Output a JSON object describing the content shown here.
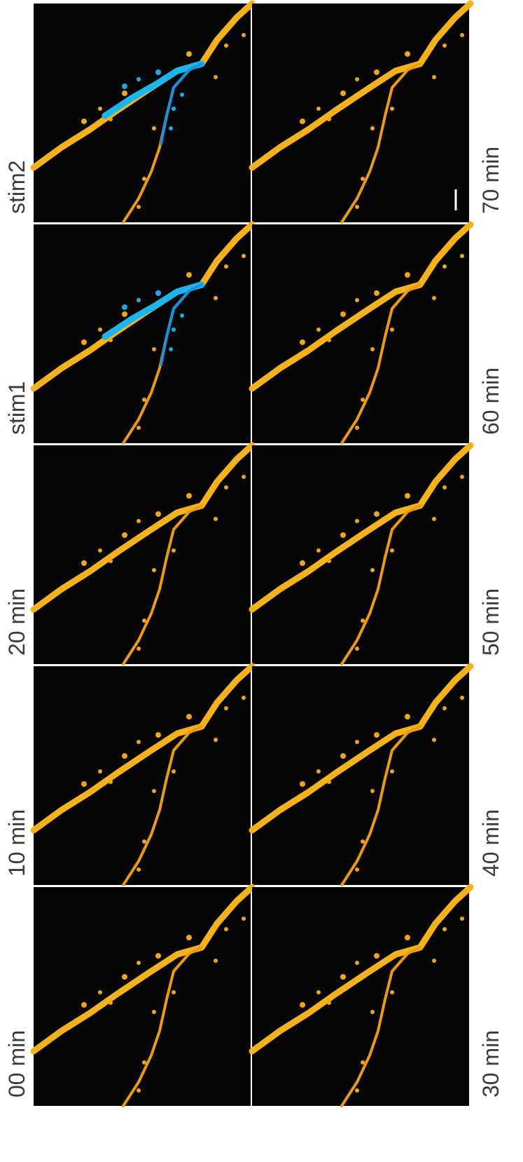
{
  "rows": [
    {
      "left": "stim2",
      "right": "70 min"
    },
    {
      "left": "stim1",
      "right": "60 min"
    },
    {
      "left": "20 min",
      "right": "50 min"
    },
    {
      "left": "10 min",
      "right": "40 min"
    },
    {
      "left": "00 min",
      "right": "30 min"
    }
  ]
}
